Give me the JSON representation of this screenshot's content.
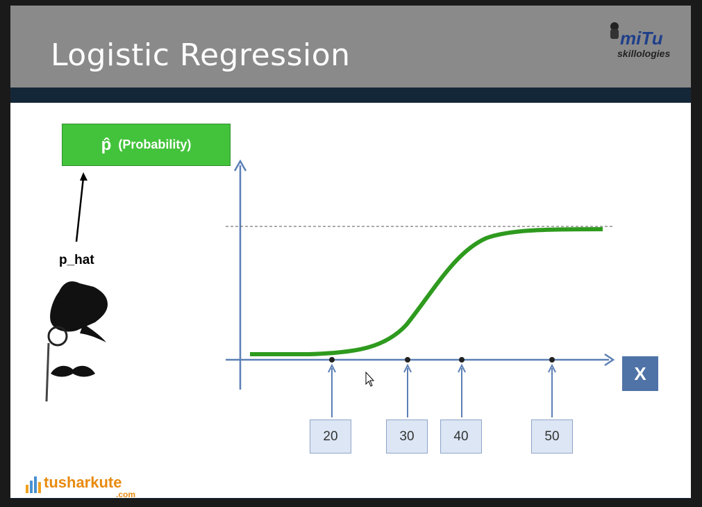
{
  "slide": {
    "title": "Logistic Regression",
    "logo": {
      "main": "miTu",
      "sub": "skillologies"
    },
    "probability_box": {
      "symbol": "p̂",
      "label": "(Probability)"
    },
    "p_hat_label": "p_hat",
    "x_axis_box": "X",
    "x_markers": [
      "20",
      "30",
      "40",
      "50"
    ],
    "brand": {
      "name": "tusharkute",
      "suffix": ".com"
    },
    "colors": {
      "curve": "#2e9a1e",
      "axis": "#5b7fb5",
      "title_bar": "#8a8a8a",
      "prob_box": "#43c33b",
      "x_box": "#4f73a6"
    },
    "icons": [
      "top-hat-monocle-mustache-icon",
      "brand-bars-icon",
      "mouse-cursor-icon"
    ]
  }
}
